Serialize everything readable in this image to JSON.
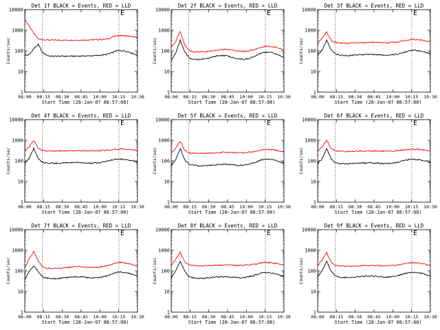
{
  "chart_data": [
    {
      "type": "line",
      "title": "Det 1f BLACK = Events, RED = LLD",
      "xlabel": "Start Time (28-Jan-07 08:57:00)",
      "ylabel": "Counts/sec",
      "x_tick_labels": [
        "08:00",
        "08:15",
        "08:30",
        "08:45",
        "10:00",
        "10:15",
        "10:30"
      ],
      "y_tick_labels": [
        "1",
        "10",
        "100",
        "1000",
        "10000"
      ],
      "ylim": [
        1,
        10000
      ],
      "y_scale": "log",
      "marker_label": "E",
      "dotted_lines": [
        0.155,
        0.835
      ],
      "marker_pos": 0.835,
      "series": [
        {
          "color": "#ff0000",
          "values": [
            3400,
            1600,
            700,
            380,
            350,
            340,
            335,
            330,
            330,
            330,
            330,
            330,
            335,
            335,
            340,
            345,
            350,
            360,
            370,
            420,
            520,
            560,
            540,
            520,
            480,
            430
          ]
        },
        {
          "color": "#000000",
          "values": [
            60,
            65,
            130,
            200,
            80,
            60,
            55,
            55,
            55,
            55,
            55,
            55,
            56,
            56,
            57,
            58,
            60,
            62,
            66,
            75,
            95,
            105,
            100,
            90,
            75,
            60
          ]
        }
      ]
    },
    {
      "type": "line",
      "title": "Det 2f BLACK = Events, RED = LLD",
      "xlabel": "Start Time (28-Jan-07 08:57:00)",
      "ylabel": "Counts/sec",
      "x_tick_labels": [
        "08:00",
        "08:15",
        "08:30",
        "08:45",
        "10:00",
        "10:15",
        "10:30"
      ],
      "y_tick_labels": [
        "1",
        "10",
        "100",
        "1000",
        "10000"
      ],
      "ylim": [
        1,
        10000
      ],
      "y_scale": "log",
      "marker_label": "E",
      "dotted_lines": [
        0.155,
        0.835
      ],
      "marker_pos": 0.835,
      "series": [
        {
          "color": "#ff0000",
          "values": [
            140,
            300,
            870,
            200,
            105,
            90,
            88,
            88,
            92,
            100,
            110,
            115,
            118,
            112,
            105,
            98,
            95,
            100,
            110,
            125,
            150,
            170,
            165,
            150,
            130,
            110
          ]
        },
        {
          "color": "#000000",
          "values": [
            35,
            80,
            330,
            90,
            45,
            38,
            38,
            40,
            44,
            50,
            56,
            60,
            58,
            52,
            46,
            40,
            38,
            42,
            50,
            62,
            78,
            88,
            85,
            75,
            60,
            48
          ]
        }
      ]
    },
    {
      "type": "line",
      "title": "Det 3f BLACK = Events, RED = LLD",
      "xlabel": "Start Time (28-Jan-07 08:57:00)",
      "ylabel": "Counts/sec",
      "x_tick_labels": [
        "08:00",
        "08:15",
        "08:30",
        "08:45",
        "10:00",
        "10:15",
        "10:30"
      ],
      "y_tick_labels": [
        "1",
        "10",
        "100",
        "1000",
        "10000"
      ],
      "ylim": [
        1,
        10000
      ],
      "y_scale": "log",
      "marker_label": "E",
      "dotted_lines": [
        0.155,
        0.835
      ],
      "marker_pos": 0.835,
      "series": [
        {
          "color": "#ff0000",
          "values": [
            230,
            400,
            850,
            320,
            250,
            240,
            238,
            240,
            242,
            245,
            250,
            255,
            260,
            258,
            252,
            248,
            250,
            260,
            275,
            300,
            340,
            360,
            350,
            330,
            300,
            270
          ]
        },
        {
          "color": "#000000",
          "values": [
            65,
            110,
            330,
            110,
            70,
            62,
            60,
            60,
            62,
            64,
            66,
            68,
            68,
            66,
            64,
            62,
            63,
            66,
            72,
            82,
            98,
            108,
            104,
            95,
            85,
            72
          ]
        }
      ]
    },
    {
      "type": "line",
      "title": "Det 4f BLACK = Events, RED = LLD",
      "xlabel": "Start Time (28-Jan-07 08:57:00)",
      "ylabel": "Counts/sec",
      "x_tick_labels": [
        "08:00",
        "08:15",
        "08:30",
        "08:45",
        "10:00",
        "10:15",
        "10:30"
      ],
      "y_tick_labels": [
        "1",
        "10",
        "100",
        "1000",
        "10000"
      ],
      "ylim": [
        1,
        10000
      ],
      "y_scale": "log",
      "marker_label": "E",
      "dotted_lines": [
        0.155,
        0.835
      ],
      "marker_pos": 0.835,
      "series": [
        {
          "color": "#ff0000",
          "values": [
            300,
            500,
            1000,
            400,
            320,
            300,
            298,
            300,
            302,
            305,
            308,
            310,
            312,
            310,
            306,
            302,
            304,
            312,
            325,
            345,
            370,
            380,
            370,
            355,
            335,
            310
          ]
        },
        {
          "color": "#000000",
          "values": [
            80,
            130,
            420,
            130,
            85,
            78,
            76,
            76,
            78,
            80,
            82,
            84,
            84,
            82,
            80,
            78,
            80,
            84,
            92,
            105,
            118,
            122,
            118,
            110,
            100,
            88
          ]
        }
      ]
    },
    {
      "type": "line",
      "title": "Det 5f BLACK = Events, RED = LLD",
      "xlabel": "Start Time (28-Jan-07 08:57:00)",
      "ylabel": "Counts/sec",
      "x_tick_labels": [
        "08:00",
        "08:15",
        "08:30",
        "08:45",
        "10:00",
        "10:15",
        "10:30"
      ],
      "y_tick_labels": [
        "1",
        "10",
        "100",
        "1000",
        "10000"
      ],
      "ylim": [
        1,
        10000
      ],
      "y_scale": "log",
      "marker_label": "E",
      "dotted_lines": [
        0.155,
        0.835
      ],
      "marker_pos": 0.835,
      "series": [
        {
          "color": "#ff0000",
          "values": [
            230,
            420,
            900,
            330,
            250,
            235,
            232,
            232,
            236,
            242,
            250,
            258,
            262,
            258,
            250,
            244,
            246,
            258,
            275,
            305,
            345,
            365,
            355,
            335,
            305,
            270
          ]
        },
        {
          "color": "#000000",
          "values": [
            60,
            110,
            400,
            110,
            68,
            60,
            58,
            58,
            60,
            62,
            65,
            68,
            68,
            66,
            63,
            61,
            62,
            67,
            76,
            92,
            112,
            122,
            118,
            106,
            92,
            76
          ]
        }
      ]
    },
    {
      "type": "line",
      "title": "Det 6f BLACK = Events, RED = LLD",
      "xlabel": "Start Time (28-Jan-07 08:57:00)",
      "ylabel": "Counts/sec",
      "x_tick_labels": [
        "08:00",
        "08:15",
        "08:30",
        "08:45",
        "10:00",
        "10:15",
        "10:30"
      ],
      "y_tick_labels": [
        "1",
        "10",
        "100",
        "1000",
        "10000"
      ],
      "ylim": [
        1,
        10000
      ],
      "y_scale": "log",
      "marker_label": "E",
      "dotted_lines": [
        0.155,
        0.835
      ],
      "marker_pos": 0.835,
      "series": [
        {
          "color": "#ff0000",
          "values": [
            290,
            480,
            1000,
            380,
            305,
            292,
            290,
            290,
            292,
            295,
            298,
            300,
            302,
            300,
            297,
            294,
            296,
            304,
            316,
            335,
            360,
            370,
            362,
            346,
            326,
            300
          ]
        },
        {
          "color": "#000000",
          "values": [
            75,
            125,
            420,
            125,
            80,
            74,
            72,
            72,
            74,
            76,
            78,
            80,
            80,
            78,
            76,
            74,
            76,
            80,
            88,
            100,
            114,
            120,
            116,
            108,
            98,
            86
          ]
        }
      ]
    },
    {
      "type": "line",
      "title": "Det 7f BLACK = Events, RED = LLD",
      "xlabel": "Start Time (28-Jan-07 08:57:00)",
      "ylabel": "Counts/sec",
      "x_tick_labels": [
        "08:00",
        "08:15",
        "08:30",
        "08:45",
        "10:00",
        "10:15",
        "10:30"
      ],
      "y_tick_labels": [
        "1",
        "10",
        "100",
        "1000",
        "10000"
      ],
      "ylim": [
        1,
        10000
      ],
      "y_scale": "log",
      "marker_label": "E",
      "dotted_lines": [
        0.155,
        0.835
      ],
      "marker_pos": 0.835,
      "series": [
        {
          "color": "#ff0000",
          "values": [
            140,
            400,
            900,
            300,
            150,
            135,
            132,
            132,
            136,
            142,
            150,
            158,
            160,
            156,
            150,
            144,
            146,
            156,
            172,
            198,
            235,
            255,
            245,
            225,
            195,
            165
          ]
        },
        {
          "color": "#000000",
          "values": [
            40,
            90,
            180,
            90,
            50,
            44,
            42,
            42,
            44,
            46,
            49,
            52,
            52,
            50,
            47,
            45,
            46,
            50,
            56,
            66,
            80,
            88,
            84,
            76,
            66,
            55
          ]
        }
      ]
    },
    {
      "type": "line",
      "title": "Det 8f BLACK = Events, RED = LLD",
      "xlabel": "Start Time (28-Jan-07 08:57:00)",
      "ylabel": "Counts/sec",
      "x_tick_labels": [
        "08:00",
        "08:15",
        "08:30",
        "08:45",
        "10:00",
        "10:15",
        "10:30"
      ],
      "y_tick_labels": [
        "1",
        "10",
        "100",
        "1000",
        "10000"
      ],
      "ylim": [
        1,
        10000
      ],
      "y_scale": "log",
      "marker_label": "E",
      "dotted_lines": [
        0.155,
        0.835
      ],
      "marker_pos": 0.835,
      "series": [
        {
          "color": "#ff0000",
          "values": [
            180,
            360,
            800,
            270,
            190,
            178,
            175,
            175,
            178,
            182,
            186,
            190,
            192,
            190,
            186,
            182,
            184,
            192,
            204,
            222,
            246,
            258,
            250,
            236,
            216,
            192
          ]
        },
        {
          "color": "#000000",
          "values": [
            45,
            95,
            300,
            95,
            52,
            46,
            44,
            44,
            46,
            48,
            50,
            52,
            52,
            50,
            48,
            46,
            47,
            51,
            57,
            66,
            78,
            84,
            80,
            72,
            62,
            52
          ]
        }
      ]
    },
    {
      "type": "line",
      "title": "Det 9f BLACK = Events, RED = LLD",
      "xlabel": "Start Time (28-Jan-07 08:57:00)",
      "ylabel": "Counts/sec",
      "x_tick_labels": [
        "08:00",
        "08:15",
        "08:30",
        "08:45",
        "10:00",
        "10:15",
        "10:30"
      ],
      "y_tick_labels": [
        "1",
        "10",
        "100",
        "1000",
        "10000"
      ],
      "ylim": [
        1,
        10000
      ],
      "y_scale": "log",
      "marker_label": "E",
      "dotted_lines": [
        0.155,
        0.835
      ],
      "marker_pos": 0.835,
      "series": [
        {
          "color": "#ff0000",
          "values": [
            175,
            340,
            780,
            260,
            185,
            172,
            170,
            170,
            172,
            176,
            180,
            184,
            186,
            184,
            180,
            176,
            178,
            186,
            198,
            216,
            238,
            250,
            242,
            228,
            208,
            185
          ]
        },
        {
          "color": "#000000",
          "values": [
            50,
            100,
            280,
            95,
            56,
            50,
            48,
            48,
            50,
            52,
            54,
            56,
            56,
            54,
            52,
            50,
            51,
            55,
            61,
            70,
            82,
            88,
            84,
            76,
            66,
            56
          ]
        }
      ]
    }
  ]
}
